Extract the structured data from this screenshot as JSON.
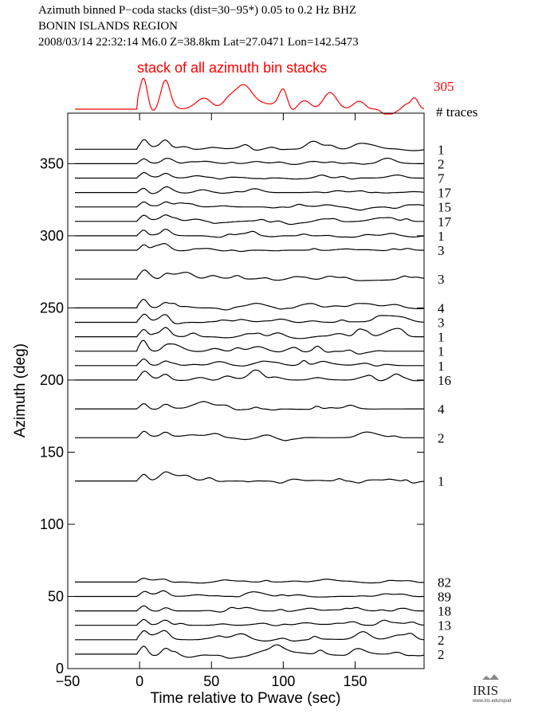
{
  "header": {
    "line1": "Azimuth binned P−coda stacks (dist=30−95*)  0.05 to 0.2 Hz  BHZ",
    "line2": "BONIN ISLANDS REGION",
    "line3": "2008/03/14   22:32:14   M6.0   Z=38.8km  Lat=27.0471  Lon=142.5473"
  },
  "logo": {
    "text": "IRIS",
    "subtext": "www.iris.edu/spud"
  },
  "chart_data": {
    "type": "line",
    "title": "Azimuth binned P−coda stacks (dist=30−95*)  0.05 to 0.2 Hz  BHZ",
    "xlabel": "Time relative to Pwave (sec)",
    "ylabel": "Azimuth (deg)",
    "xlim": [
      -50,
      198
    ],
    "ylim": [
      0,
      385
    ],
    "xticks": [
      -50,
      0,
      50,
      100,
      150
    ],
    "yticks": [
      0,
      50,
      100,
      150,
      200,
      250,
      300,
      350
    ],
    "traces_label": "# traces",
    "stack": {
      "label": "stack of all azimuth bin stacks",
      "count": "305",
      "color": "#ff0000"
    },
    "series": [
      {
        "azimuth": 360,
        "traces": "1",
        "amp": 1.0
      },
      {
        "azimuth": 350,
        "traces": "2",
        "amp": 0.6
      },
      {
        "azimuth": 340,
        "traces": "7",
        "amp": 0.6
      },
      {
        "azimuth": 330,
        "traces": "17",
        "amp": 0.6
      },
      {
        "azimuth": 320,
        "traces": "15",
        "amp": 0.6
      },
      {
        "azimuth": 310,
        "traces": "17",
        "amp": 0.7
      },
      {
        "azimuth": 300,
        "traces": "1",
        "amp": 0.7
      },
      {
        "azimuth": 290,
        "traces": "3",
        "amp": 0.7
      },
      {
        "azimuth": 270,
        "traces": "3",
        "amp": 0.8
      },
      {
        "azimuth": 250,
        "traces": "4",
        "amp": 0.8
      },
      {
        "azimuth": 240,
        "traces": "3",
        "amp": 0.8
      },
      {
        "azimuth": 230,
        "traces": "1",
        "amp": 1.0
      },
      {
        "azimuth": 220,
        "traces": "1",
        "amp": 1.0
      },
      {
        "azimuth": 210,
        "traces": "1",
        "amp": 0.8
      },
      {
        "azimuth": 200,
        "traces": "16",
        "amp": 0.8
      },
      {
        "azimuth": 180,
        "traces": "4",
        "amp": 0.7
      },
      {
        "azimuth": 160,
        "traces": "2",
        "amp": 0.8
      },
      {
        "azimuth": 130,
        "traces": "1",
        "amp": 0.8
      },
      {
        "azimuth": 60,
        "traces": "82",
        "amp": 0.4
      },
      {
        "azimuth": 50,
        "traces": "89",
        "amp": 0.5
      },
      {
        "azimuth": 40,
        "traces": "18",
        "amp": 0.6
      },
      {
        "azimuth": 30,
        "traces": "13",
        "amp": 0.7
      },
      {
        "azimuth": 20,
        "traces": "2",
        "amp": 0.9
      },
      {
        "azimuth": 10,
        "traces": "2",
        "amp": 1.0
      }
    ]
  }
}
